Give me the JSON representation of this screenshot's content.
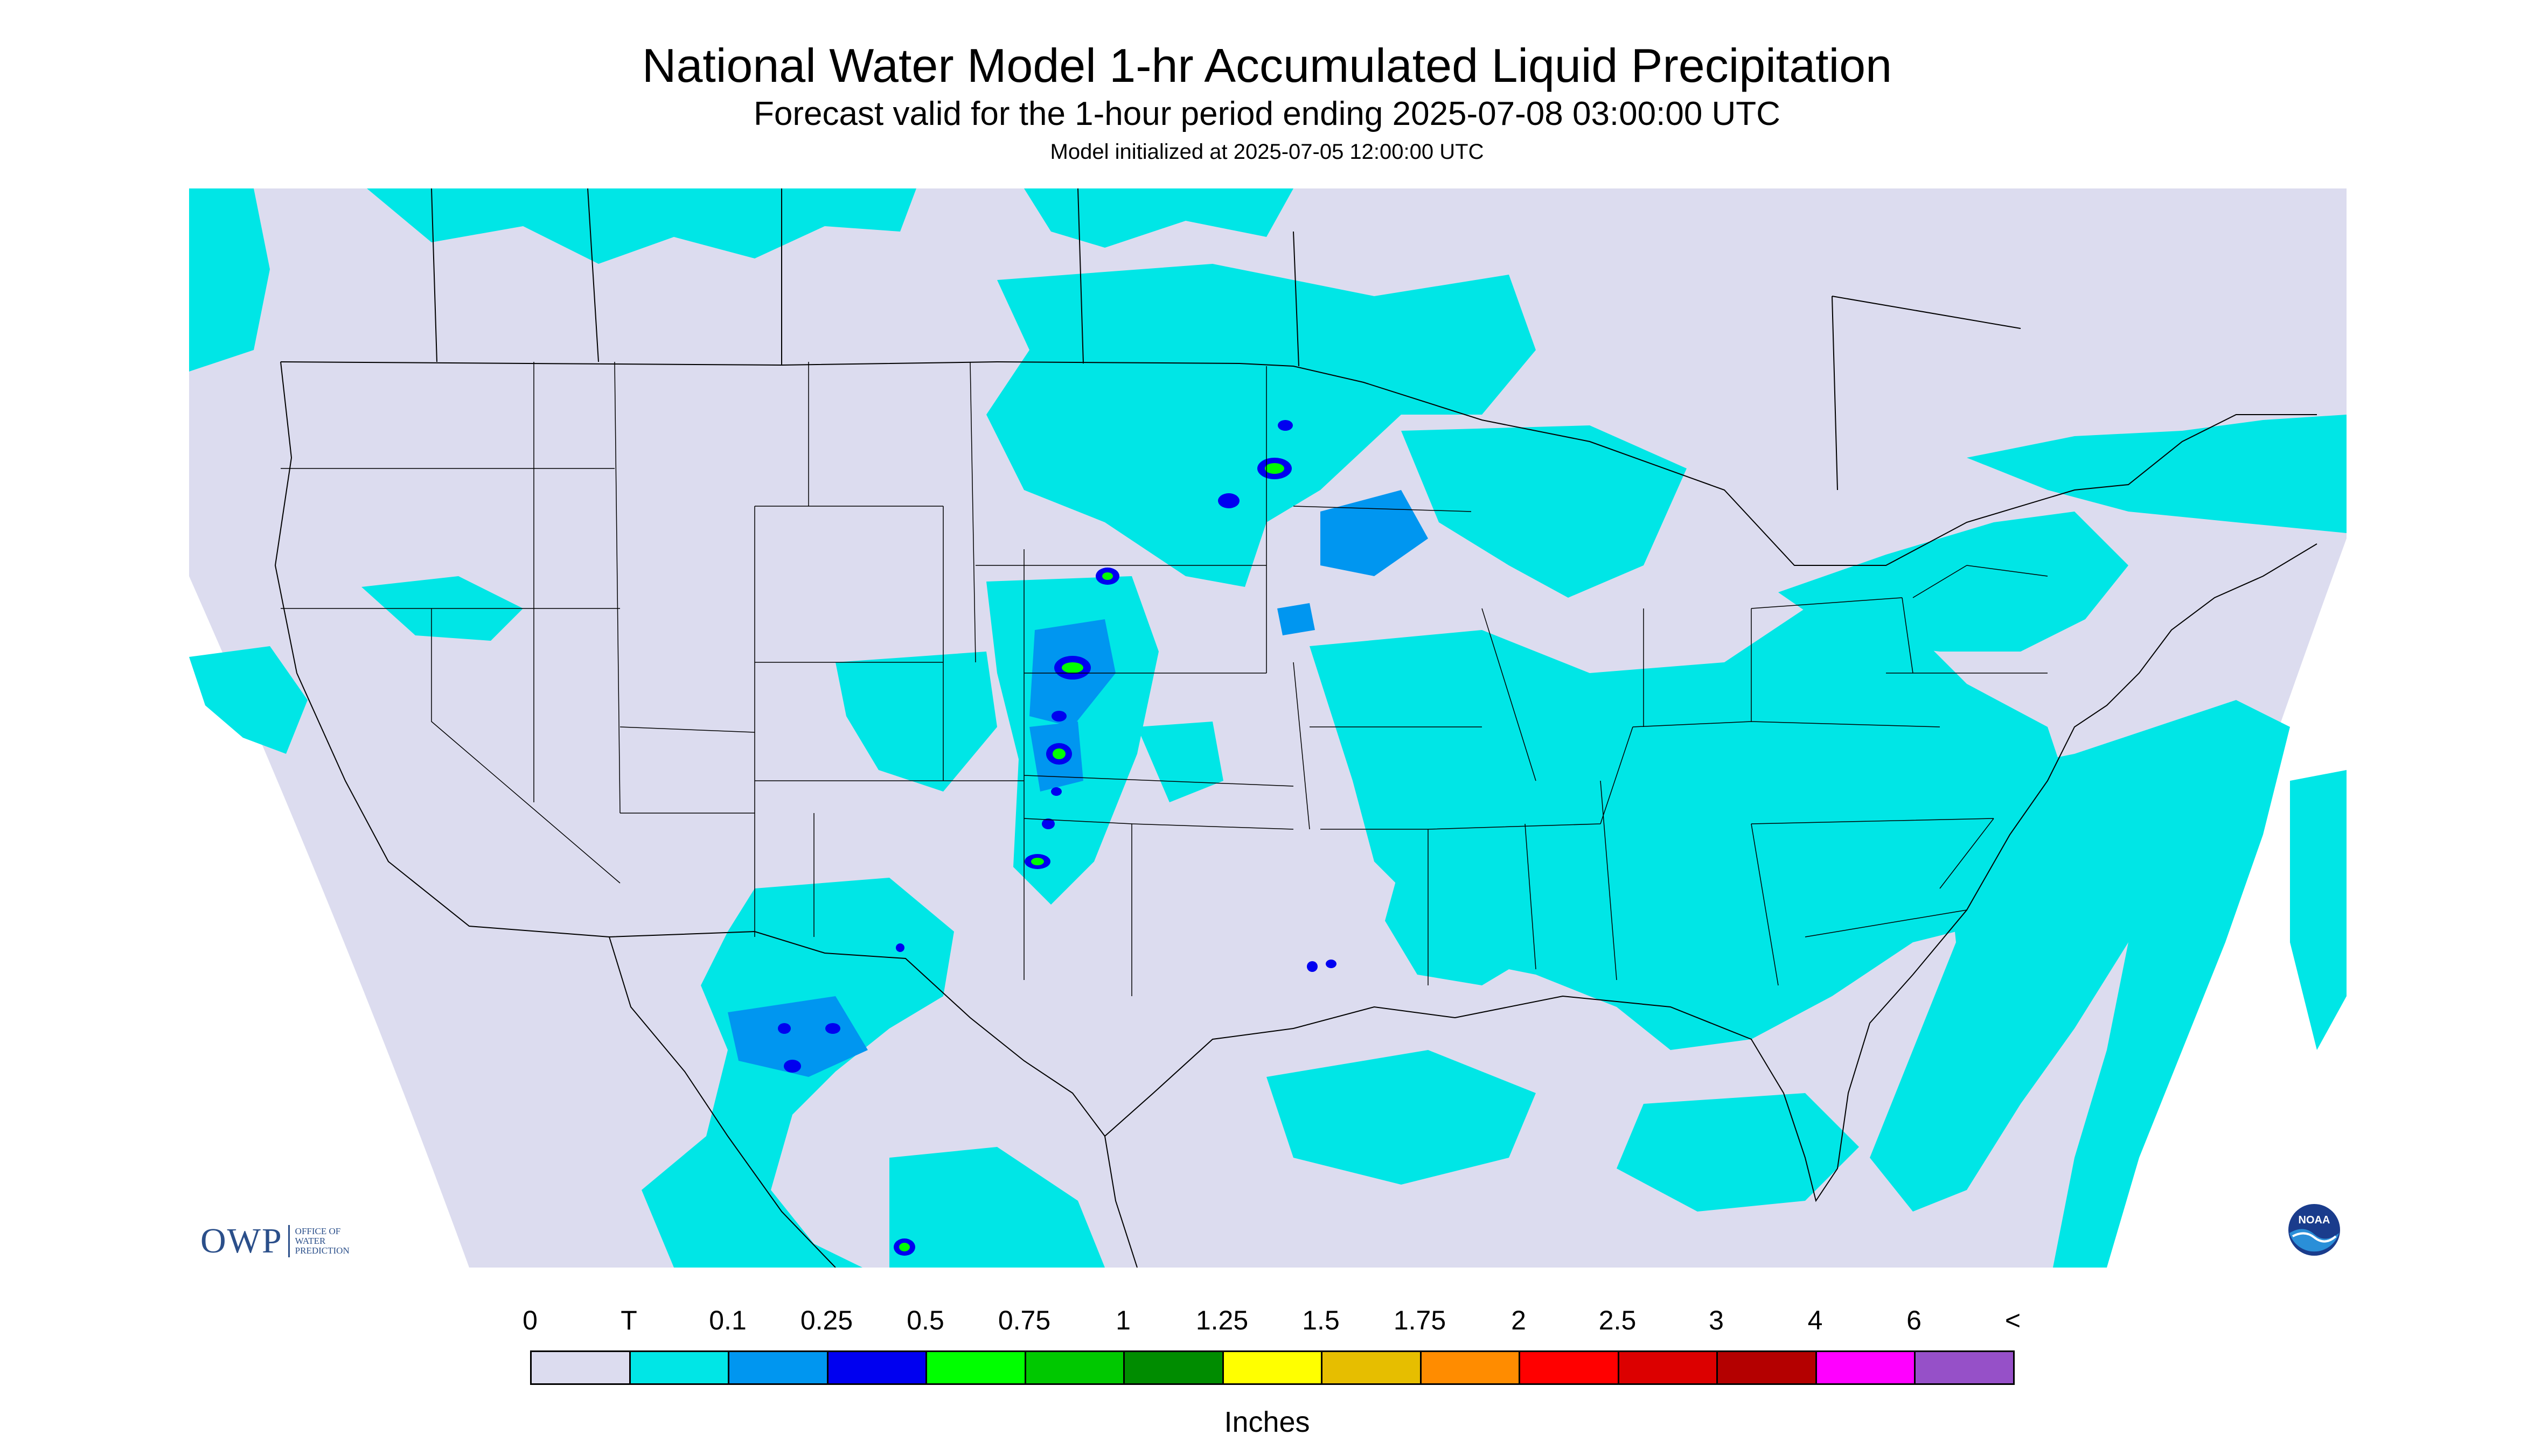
{
  "header": {
    "title": "National Water Model 1-hr Accumulated Liquid Precipitation",
    "subtitle": "Forecast valid for the 1-hour period ending 2025-07-08 03:00:00 UTC",
    "init_line": "Model initialized at 2025-07-05 12:00:00 UTC"
  },
  "legend": {
    "units": "Inches",
    "labels": [
      "0",
      "T",
      "0.1",
      "0.25",
      "0.5",
      "0.75",
      "1",
      "1.25",
      "1.5",
      "1.75",
      "2",
      "2.5",
      "3",
      "4",
      "6",
      "<"
    ],
    "colors": [
      "#dcdcef",
      "#00e6e6",
      "#0096f0",
      "#0000f0",
      "#00ff00",
      "#00c800",
      "#008c00",
      "#ffff00",
      "#e6be00",
      "#ff8c00",
      "#ff0000",
      "#dc0000",
      "#b40000",
      "#ff00ff",
      "#9650c8"
    ]
  },
  "colors": {
    "no_data": "#ffffff",
    "zero": "#dcdcef",
    "trace": "#00e6e6",
    "borders": "#000000"
  },
  "logos": {
    "owp_mark": "OWP",
    "owp_text": [
      "OFFICE OF",
      "WATER",
      "PREDICTION"
    ],
    "noaa_text": "NOAA"
  },
  "map": {
    "region": "CONUS",
    "projection": "Lambert Conformal"
  }
}
